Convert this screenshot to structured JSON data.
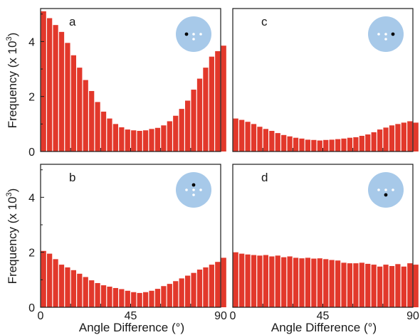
{
  "colors": {
    "bar": "#e2382b",
    "inset_circle": "#a7c9e9",
    "inset_dot_light": "#ffffff",
    "inset_dot_highlight": "#000000",
    "axis": "#1a1a1a"
  },
  "ylabel_main": "Frequency (x 10",
  "ylabel_sup": "3",
  "ylabel_close": ")",
  "xlabel": "Angle Difference (°)",
  "chart_data": [
    {
      "type": "bar",
      "panel_label": "a",
      "inset_icon": "circle-dots-left-highlight-icon",
      "x_bin_width": 3,
      "xlim": [
        0,
        90
      ],
      "ylim": [
        0,
        5.2
      ],
      "x_ticks": [
        "0",
        "45",
        "90"
      ],
      "y_ticks": [
        "0",
        "2",
        "4"
      ],
      "values": [
        5.1,
        4.85,
        4.6,
        4.35,
        3.95,
        3.5,
        3.05,
        2.6,
        2.2,
        1.8,
        1.45,
        1.2,
        1.0,
        0.88,
        0.8,
        0.77,
        0.75,
        0.77,
        0.82,
        0.86,
        0.95,
        1.1,
        1.3,
        1.55,
        1.85,
        2.25,
        2.65,
        3.05,
        3.45,
        3.65,
        3.85
      ]
    },
    {
      "type": "bar",
      "panel_label": "b",
      "inset_icon": "circle-dots-top-highlight-icon",
      "x_bin_width": 3,
      "xlim": [
        0,
        90
      ],
      "ylim": [
        0,
        5.2
      ],
      "x_ticks": [
        "0",
        "45",
        "90"
      ],
      "y_ticks": [
        "0",
        "2",
        "4"
      ],
      "values": [
        2.05,
        1.95,
        1.75,
        1.55,
        1.45,
        1.35,
        1.22,
        1.1,
        0.98,
        0.88,
        0.8,
        0.75,
        0.7,
        0.66,
        0.6,
        0.55,
        0.52,
        0.55,
        0.6,
        0.67,
        0.77,
        0.85,
        0.95,
        1.05,
        1.15,
        1.25,
        1.37,
        1.45,
        1.55,
        1.65,
        1.8
      ]
    },
    {
      "type": "bar",
      "panel_label": "c",
      "inset_icon": "circle-dots-right-highlight-icon",
      "x_bin_width": 3,
      "xlim": [
        0,
        90
      ],
      "ylim": [
        0,
        5.2
      ],
      "x_ticks": [
        "0",
        "45",
        "90"
      ],
      "y_ticks": [],
      "values": [
        1.2,
        1.15,
        1.08,
        1.0,
        0.9,
        0.82,
        0.75,
        0.67,
        0.6,
        0.55,
        0.5,
        0.47,
        0.43,
        0.42,
        0.4,
        0.42,
        0.43,
        0.45,
        0.47,
        0.5,
        0.52,
        0.57,
        0.62,
        0.7,
        0.8,
        0.87,
        0.95,
        1.0,
        1.05,
        1.1,
        1.05
      ]
    },
    {
      "type": "bar",
      "panel_label": "d",
      "inset_icon": "circle-dots-bottom-highlight-icon",
      "x_bin_width": 3,
      "xlim": [
        0,
        90
      ],
      "ylim": [
        0,
        5.2
      ],
      "x_ticks": [
        "0",
        "45",
        "90"
      ],
      "y_ticks": [],
      "values": [
        2.0,
        1.95,
        1.92,
        1.9,
        1.88,
        1.9,
        1.85,
        1.88,
        1.82,
        1.85,
        1.8,
        1.78,
        1.8,
        1.77,
        1.78,
        1.75,
        1.72,
        1.7,
        1.62,
        1.6,
        1.6,
        1.62,
        1.58,
        1.55,
        1.48,
        1.55,
        1.5,
        1.57,
        1.48,
        1.6,
        1.55
      ]
    }
  ]
}
